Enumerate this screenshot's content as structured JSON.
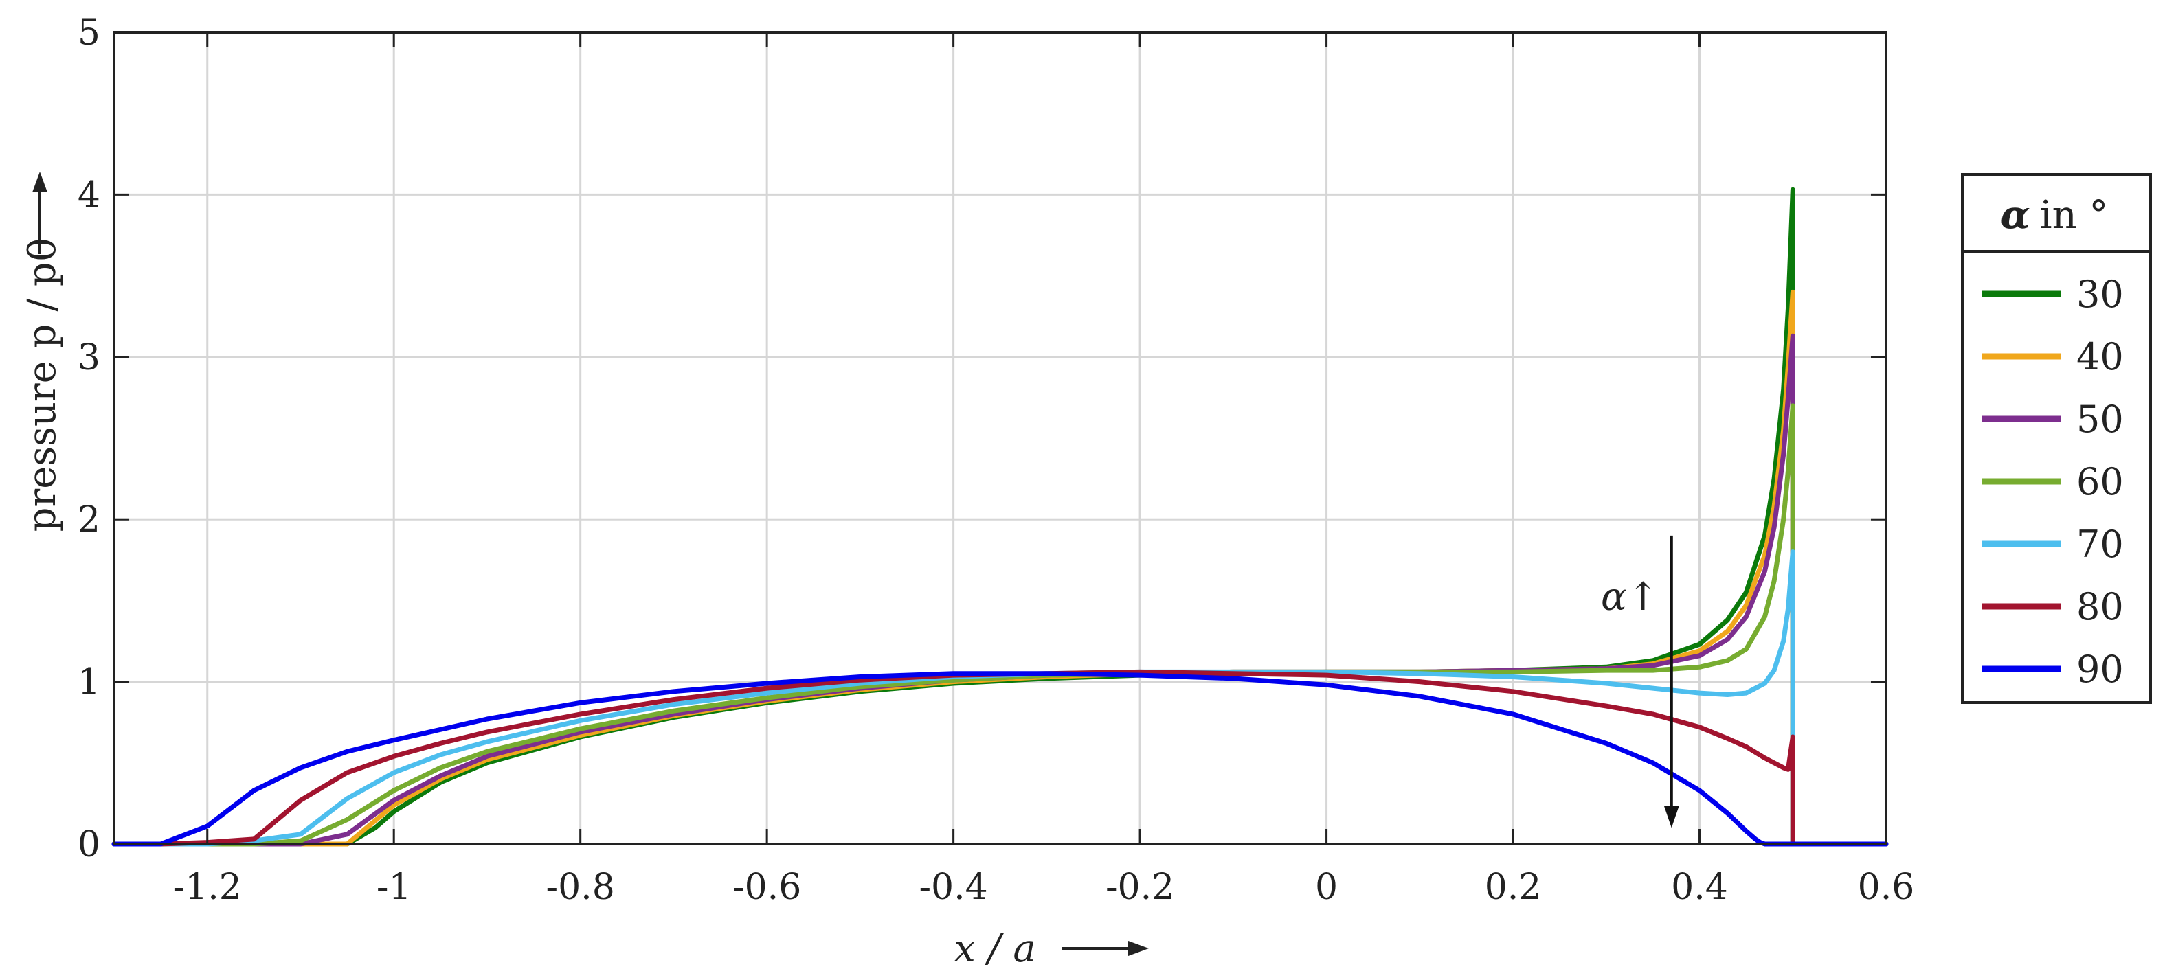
{
  "chart_data": {
    "type": "line",
    "xlabel": "x / a",
    "ylabel": "pressure p / p0",
    "xlim": [
      -1.3,
      0.6
    ],
    "ylim": [
      0,
      5
    ],
    "xticks": [
      -1.2,
      -1,
      -0.8,
      -0.6,
      -0.4,
      -0.2,
      0,
      0.2,
      0.4,
      0.6
    ],
    "xtick_labels": [
      "-1.2",
      "-1",
      "-0.8",
      "-0.6",
      "-0.4",
      "-0.2",
      "0",
      "0.2",
      "0.4",
      "0.6"
    ],
    "yticks": [
      0,
      1,
      2,
      3,
      4,
      5
    ],
    "ytick_labels": [
      "0",
      "1",
      "2",
      "3",
      "4",
      "5"
    ],
    "grid": true,
    "legend": {
      "title_symbol": "α",
      "title_text": "in °",
      "position": "right"
    },
    "annotation": {
      "text": "α↑",
      "arrow_x": 0.37,
      "arrow_y_from": 1.9,
      "arrow_y_to": 0.1
    },
    "series": [
      {
        "name": "30",
        "color": "#0b7a0b",
        "x": [
          -1.3,
          -1.25,
          -1.2,
          -1.15,
          -1.1,
          -1.05,
          -1.02,
          -1.0,
          -0.95,
          -0.9,
          -0.8,
          -0.7,
          -0.6,
          -0.5,
          -0.4,
          -0.3,
          -0.2,
          -0.1,
          0.0,
          0.1,
          0.2,
          0.3,
          0.35,
          0.4,
          0.43,
          0.45,
          0.47,
          0.48,
          0.49,
          0.495,
          0.5,
          0.5,
          0.503,
          0.6
        ],
        "y": [
          0,
          0,
          0,
          0,
          0,
          0,
          0.1,
          0.2,
          0.38,
          0.5,
          0.66,
          0.78,
          0.87,
          0.94,
          0.99,
          1.02,
          1.04,
          1.05,
          1.06,
          1.06,
          1.07,
          1.09,
          1.13,
          1.23,
          1.38,
          1.55,
          1.9,
          2.25,
          2.8,
          3.3,
          4.03,
          0,
          0,
          0
        ]
      },
      {
        "name": "40",
        "color": "#f0a71c",
        "x": [
          -1.3,
          -1.25,
          -1.2,
          -1.15,
          -1.1,
          -1.05,
          -1.0,
          -0.95,
          -0.9,
          -0.8,
          -0.7,
          -0.6,
          -0.5,
          -0.4,
          -0.3,
          -0.2,
          -0.1,
          0.0,
          0.1,
          0.2,
          0.3,
          0.35,
          0.4,
          0.43,
          0.45,
          0.47,
          0.48,
          0.49,
          0.495,
          0.5,
          0.5,
          0.503,
          0.6
        ],
        "y": [
          0,
          0,
          0,
          0,
          0,
          0,
          0.24,
          0.4,
          0.52,
          0.67,
          0.79,
          0.88,
          0.95,
          1.0,
          1.03,
          1.05,
          1.06,
          1.06,
          1.06,
          1.07,
          1.08,
          1.11,
          1.19,
          1.31,
          1.47,
          1.78,
          2.08,
          2.55,
          2.95,
          3.4,
          0,
          0,
          0
        ]
      },
      {
        "name": "50",
        "color": "#7d2e8e",
        "x": [
          -1.3,
          -1.25,
          -1.2,
          -1.15,
          -1.1,
          -1.05,
          -1.0,
          -0.95,
          -0.9,
          -0.8,
          -0.7,
          -0.6,
          -0.5,
          -0.4,
          -0.3,
          -0.2,
          -0.1,
          0.0,
          0.1,
          0.2,
          0.3,
          0.35,
          0.4,
          0.43,
          0.45,
          0.47,
          0.48,
          0.49,
          0.495,
          0.5,
          0.5,
          0.503,
          0.6
        ],
        "y": [
          0,
          0,
          0,
          0,
          0,
          0.06,
          0.27,
          0.42,
          0.54,
          0.69,
          0.8,
          0.89,
          0.96,
          1.01,
          1.04,
          1.05,
          1.06,
          1.06,
          1.06,
          1.07,
          1.08,
          1.1,
          1.16,
          1.26,
          1.4,
          1.68,
          1.95,
          2.4,
          2.75,
          3.13,
          0,
          0,
          0
        ]
      },
      {
        "name": "60",
        "color": "#77ac30",
        "x": [
          -1.3,
          -1.25,
          -1.2,
          -1.15,
          -1.1,
          -1.05,
          -1.0,
          -0.95,
          -0.9,
          -0.8,
          -0.7,
          -0.6,
          -0.5,
          -0.4,
          -0.3,
          -0.2,
          -0.1,
          0.0,
          0.1,
          0.2,
          0.3,
          0.35,
          0.4,
          0.43,
          0.45,
          0.47,
          0.48,
          0.49,
          0.495,
          0.5,
          0.5,
          0.503,
          0.6
        ],
        "y": [
          0,
          0,
          0,
          0,
          0.02,
          0.15,
          0.33,
          0.47,
          0.57,
          0.71,
          0.82,
          0.9,
          0.97,
          1.01,
          1.04,
          1.05,
          1.06,
          1.06,
          1.06,
          1.06,
          1.07,
          1.07,
          1.09,
          1.13,
          1.2,
          1.4,
          1.62,
          2.0,
          2.3,
          2.7,
          0,
          0,
          0
        ]
      },
      {
        "name": "70",
        "color": "#4dbeee",
        "x": [
          -1.3,
          -1.25,
          -1.2,
          -1.15,
          -1.1,
          -1.05,
          -1.0,
          -0.95,
          -0.9,
          -0.8,
          -0.7,
          -0.6,
          -0.5,
          -0.4,
          -0.3,
          -0.2,
          -0.1,
          0.0,
          0.1,
          0.2,
          0.3,
          0.35,
          0.4,
          0.43,
          0.45,
          0.47,
          0.48,
          0.49,
          0.495,
          0.5,
          0.5,
          0.503,
          0.6
        ],
        "y": [
          0,
          0,
          0,
          0.02,
          0.06,
          0.28,
          0.44,
          0.55,
          0.63,
          0.76,
          0.86,
          0.93,
          0.99,
          1.03,
          1.05,
          1.06,
          1.06,
          1.06,
          1.05,
          1.03,
          0.99,
          0.96,
          0.93,
          0.92,
          0.93,
          0.99,
          1.07,
          1.25,
          1.45,
          1.8,
          0,
          0,
          0
        ]
      },
      {
        "name": "80",
        "color": "#a2142f",
        "x": [
          -1.3,
          -1.25,
          -1.2,
          -1.15,
          -1.1,
          -1.05,
          -1.0,
          -0.95,
          -0.9,
          -0.8,
          -0.7,
          -0.6,
          -0.5,
          -0.4,
          -0.3,
          -0.2,
          -0.1,
          0.0,
          0.1,
          0.2,
          0.3,
          0.35,
          0.4,
          0.43,
          0.45,
          0.47,
          0.48,
          0.49,
          0.495,
          0.5,
          0.5,
          0.503,
          0.6
        ],
        "y": [
          0,
          0,
          0.01,
          0.03,
          0.27,
          0.44,
          0.54,
          0.62,
          0.69,
          0.8,
          0.89,
          0.96,
          1.01,
          1.04,
          1.05,
          1.06,
          1.05,
          1.04,
          1.0,
          0.94,
          0.85,
          0.8,
          0.72,
          0.65,
          0.6,
          0.53,
          0.5,
          0.47,
          0.46,
          0.66,
          0,
          0,
          0
        ]
      },
      {
        "name": "90",
        "color": "#0000ee",
        "x": [
          -1.3,
          -1.25,
          -1.2,
          -1.15,
          -1.1,
          -1.05,
          -1.0,
          -0.9,
          -0.8,
          -0.7,
          -0.6,
          -0.5,
          -0.4,
          -0.3,
          -0.2,
          -0.1,
          0.0,
          0.1,
          0.2,
          0.3,
          0.35,
          0.4,
          0.43,
          0.45,
          0.46,
          0.465,
          0.47,
          0.6
        ],
        "y": [
          0,
          0,
          0.11,
          0.33,
          0.47,
          0.57,
          0.64,
          0.77,
          0.87,
          0.94,
          0.99,
          1.03,
          1.05,
          1.05,
          1.04,
          1.02,
          0.98,
          0.91,
          0.8,
          0.62,
          0.5,
          0.33,
          0.19,
          0.08,
          0.03,
          0.01,
          0,
          0
        ]
      }
    ]
  }
}
